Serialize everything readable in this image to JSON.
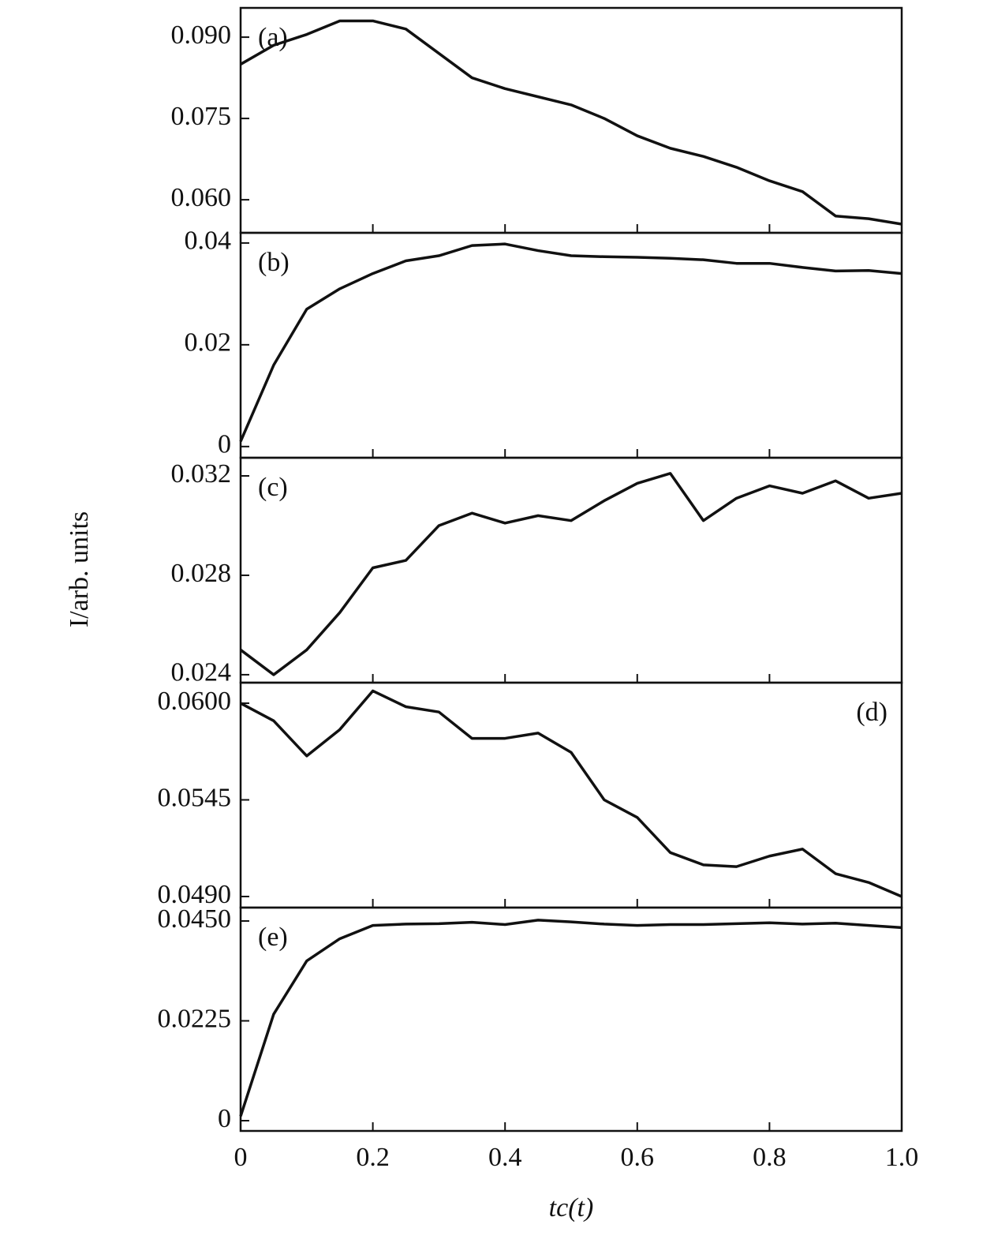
{
  "chart_data": [
    {
      "type": "line",
      "annotation": "(a)",
      "color": "#111111",
      "x": [
        0,
        0.05,
        0.1,
        0.15,
        0.2,
        0.25,
        0.3,
        0.35,
        0.4,
        0.45,
        0.5,
        0.55,
        0.6,
        0.65,
        0.7,
        0.75,
        0.8,
        0.85,
        0.9,
        0.95,
        1
      ],
      "values": [
        0.085,
        0.0885,
        0.0905,
        0.093,
        0.093,
        0.0915,
        0.087,
        0.0825,
        0.0805,
        0.079,
        0.0775,
        0.075,
        0.0718,
        0.0695,
        0.068,
        0.066,
        0.0635,
        0.0615,
        0.057,
        0.0565,
        0.0555
      ],
      "xlim": [
        0,
        1
      ],
      "ylim": [
        0.0539,
        0.0954
      ],
      "yticks": [
        {
          "value": 0.09,
          "label": "0.090"
        },
        {
          "value": 0.075,
          "label": "0.075"
        },
        {
          "value": 0.06,
          "label": "0.060"
        }
      ]
    },
    {
      "type": "line",
      "annotation": "(b)",
      "color": "#111111",
      "x": [
        0,
        0.05,
        0.1,
        0.15,
        0.2,
        0.25,
        0.3,
        0.35,
        0.4,
        0.45,
        0.5,
        0.55,
        0.6,
        0.65,
        0.7,
        0.75,
        0.8,
        0.85,
        0.9,
        0.95,
        1
      ],
      "values": [
        0.001,
        0.016,
        0.027,
        0.031,
        0.034,
        0.0365,
        0.0375,
        0.0395,
        0.0398,
        0.0385,
        0.0375,
        0.0373,
        0.0372,
        0.037,
        0.0367,
        0.036,
        0.036,
        0.0352,
        0.0345,
        0.0346,
        0.034
      ],
      "xlim": [
        0,
        1
      ],
      "ylim": [
        -0.0022,
        0.042
      ],
      "yticks": [
        0.04,
        0.02,
        0
      ]
    },
    {
      "type": "line",
      "annotation": "(c)",
      "color": "#111111",
      "ylabel": "I/arb. units",
      "x": [
        0,
        0.05,
        0.1,
        0.15,
        0.2,
        0.25,
        0.3,
        0.35,
        0.4,
        0.45,
        0.5,
        0.55,
        0.6,
        0.65,
        0.7,
        0.75,
        0.8,
        0.85,
        0.9,
        0.95,
        1
      ],
      "values": [
        0.025,
        0.024,
        0.025,
        0.0265,
        0.0283,
        0.0286,
        0.03,
        0.0305,
        0.0301,
        0.0304,
        0.0302,
        0.031,
        0.0317,
        0.0321,
        0.0302,
        0.0311,
        0.0316,
        0.0313,
        0.0318,
        0.0311,
        0.0313
      ],
      "xlim": [
        0,
        1
      ],
      "ylim": [
        0.02368,
        0.03273
      ],
      "yticks": [
        0.032,
        0.028,
        0.024
      ]
    },
    {
      "type": "line",
      "annotation": "(d)",
      "color": "#111111",
      "x": [
        0,
        0.05,
        0.1,
        0.15,
        0.2,
        0.25,
        0.3,
        0.35,
        0.4,
        0.45,
        0.5,
        0.55,
        0.6,
        0.65,
        0.7,
        0.75,
        0.8,
        0.85,
        0.9,
        0.95,
        1
      ],
      "values": [
        0.06,
        0.059,
        0.057,
        0.0585,
        0.0607,
        0.0598,
        0.0595,
        0.058,
        0.058,
        0.0583,
        0.0572,
        0.0545,
        0.0535,
        0.0515,
        0.0508,
        0.0507,
        0.0513,
        0.0517,
        0.0503,
        0.0498,
        0.049
      ],
      "xlim": [
        0,
        1
      ],
      "ylim": [
        0.04837,
        0.06117
      ],
      "yticks": [
        {
          "value": 0.06,
          "label": "0.0600"
        },
        0.0545,
        {
          "value": 0.049,
          "label": "0.0490"
        }
      ]
    },
    {
      "type": "line",
      "annotation": "(e)",
      "color": "#111111",
      "xlabel": "tc(t)",
      "x": [
        0,
        0.05,
        0.1,
        0.15,
        0.2,
        0.25,
        0.3,
        0.35,
        0.4,
        0.45,
        0.5,
        0.55,
        0.6,
        0.65,
        0.7,
        0.75,
        0.8,
        0.85,
        0.9,
        0.95,
        1
      ],
      "values": [
        0.001,
        0.024,
        0.036,
        0.041,
        0.044,
        0.0443,
        0.0444,
        0.0447,
        0.0442,
        0.0452,
        0.0448,
        0.0443,
        0.044,
        0.0442,
        0.0442,
        0.0444,
        0.0446,
        0.0443,
        0.0445,
        0.044,
        0.0435
      ],
      "xlim": [
        0,
        1
      ],
      "ylim": [
        -0.00231,
        0.04802
      ],
      "yticks": [
        {
          "value": 0.045,
          "label": "0.0450"
        },
        0.0225,
        0
      ],
      "xticks": [
        0,
        0.2,
        0.4,
        0.6,
        0.8,
        {
          "value": 1,
          "label": "1.0"
        }
      ]
    }
  ]
}
